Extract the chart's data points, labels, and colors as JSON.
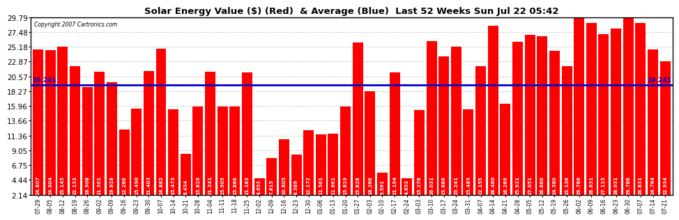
{
  "title": "Solar Energy Value ($) (Red)  & Average (Blue)  Last 52 Weeks Sun Jul 22 05:42",
  "copyright": "Copyright 2007 Cartronics.com",
  "average_value": 19.241,
  "bar_color": "#ff0000",
  "average_line_color": "#0000cc",
  "background_color": "#ffffff",
  "plot_bg_color": "#ffffff",
  "grid_color": "#bbbbbb",
  "yticks": [
    2.14,
    4.44,
    6.75,
    9.05,
    11.36,
    13.66,
    15.96,
    18.27,
    20.57,
    22.87,
    25.18,
    27.48,
    29.79
  ],
  "ymin": 2.14,
  "ymax": 29.79,
  "labels": [
    "07-29",
    "08-05",
    "08-12",
    "08-19",
    "08-26",
    "09-02",
    "09-09",
    "09-16",
    "09-23",
    "09-30",
    "10-07",
    "10-14",
    "10-21",
    "10-28",
    "11-04",
    "11-11",
    "11-18",
    "11-25",
    "12-02",
    "12-09",
    "12-16",
    "12-23",
    "12-30",
    "01-06",
    "01-13",
    "01-20",
    "01-27",
    "02-03",
    "02-10",
    "02-17",
    "02-24",
    "03-03",
    "03-10",
    "03-17",
    "03-24",
    "03-31",
    "04-07",
    "04-14",
    "04-21",
    "04-28",
    "05-05",
    "05-12",
    "05-19",
    "05-26",
    "06-02",
    "06-09",
    "06-16",
    "06-23",
    "06-30",
    "07-07",
    "07-14",
    "07-21"
  ],
  "values": [
    24.807,
    24.604,
    25.145,
    22.133,
    18.908,
    21.301,
    19.618,
    12.266,
    15.49,
    21.403,
    24.882,
    15.473,
    8.454,
    15.819,
    21.341,
    15.905,
    15.866,
    21.163,
    4.653,
    7.815,
    10.805,
    8.389,
    12.172,
    11.561,
    11.661,
    15.819,
    25.828,
    18.266,
    5.591,
    21.194,
    4.653,
    15.278,
    26.031,
    23.686,
    25.241,
    15.485,
    22.155,
    28.48,
    16.269,
    25.931,
    27.051,
    26.86,
    24.58,
    22.136,
    29.786,
    28.831,
    27.115,
    28.031,
    29.786,
    28.831,
    24.764,
    22.934
  ],
  "bar_width": 0.85,
  "value_fontsize": 5.0,
  "label_fontsize": 5.5,
  "ytick_fontsize": 7.5,
  "title_fontsize": 9.5
}
